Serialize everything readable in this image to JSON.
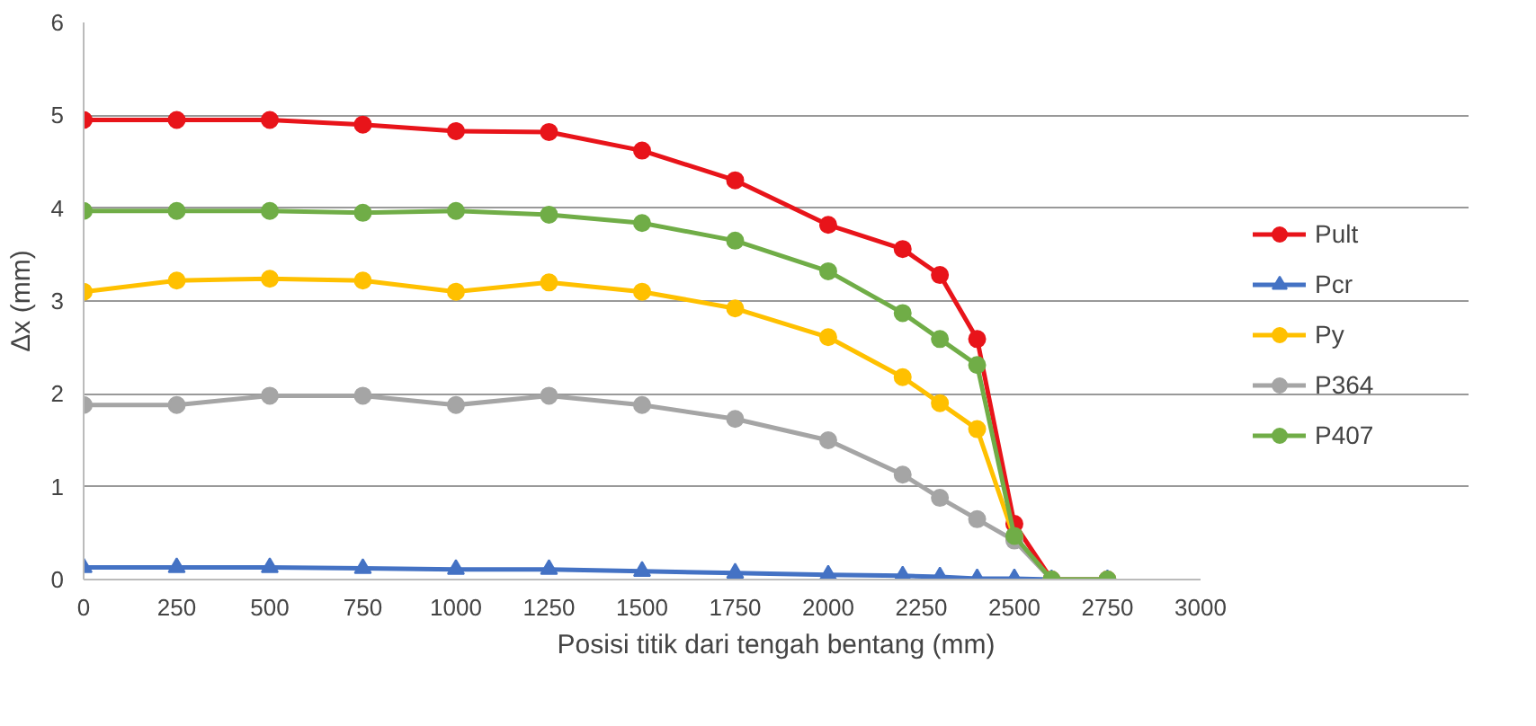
{
  "chart_data": {
    "type": "line",
    "xlabel": "Posisi titik dari tengah bentang (mm)",
    "ylabel": "Δx (mm)",
    "x": [
      0,
      250,
      500,
      750,
      1000,
      1250,
      1500,
      1750,
      2000,
      2200,
      2300,
      2400,
      2500,
      2600,
      2750
    ],
    "series": [
      {
        "name": "Pult",
        "color": "#e8141a",
        "marker": "circle",
        "values": [
          4.95,
          4.95,
          4.95,
          4.9,
          4.83,
          4.82,
          4.62,
          4.3,
          3.82,
          3.56,
          3.28,
          2.59,
          0.6,
          0,
          0
        ]
      },
      {
        "name": "Pcr",
        "color": "#4472c4",
        "marker": "triangle",
        "values": [
          0.13,
          0.13,
          0.13,
          0.12,
          0.11,
          0.11,
          0.09,
          0.07,
          0.05,
          0.04,
          0.03,
          0.01,
          0.01,
          0,
          0
        ]
      },
      {
        "name": "Py",
        "color": "#ffc000",
        "marker": "circle",
        "values": [
          3.1,
          3.22,
          3.24,
          3.22,
          3.1,
          3.2,
          3.1,
          2.92,
          2.61,
          2.18,
          1.9,
          1.62,
          0.45,
          0,
          0
        ]
      },
      {
        "name": "P364",
        "color": "#a5a5a5",
        "marker": "circle",
        "values": [
          1.88,
          1.88,
          1.98,
          1.98,
          1.88,
          1.98,
          1.88,
          1.73,
          1.5,
          1.13,
          0.88,
          0.65,
          0.42,
          0,
          0
        ]
      },
      {
        "name": "P407",
        "color": "#70ad47",
        "marker": "circle",
        "values": [
          3.97,
          3.97,
          3.97,
          3.95,
          3.97,
          3.93,
          3.84,
          3.65,
          3.32,
          2.87,
          2.59,
          2.31,
          0.47,
          0,
          0
        ]
      }
    ],
    "xlim": [
      0,
      3000
    ],
    "xticks": [
      0,
      250,
      500,
      750,
      1000,
      1250,
      1500,
      1750,
      2000,
      2250,
      2500,
      2750,
      3000
    ],
    "ylim": [
      0,
      6
    ],
    "yticks": [
      0,
      1,
      2,
      3,
      4,
      5,
      6
    ],
    "grid": "y",
    "legend": "right",
    "line_style": "solid"
  }
}
